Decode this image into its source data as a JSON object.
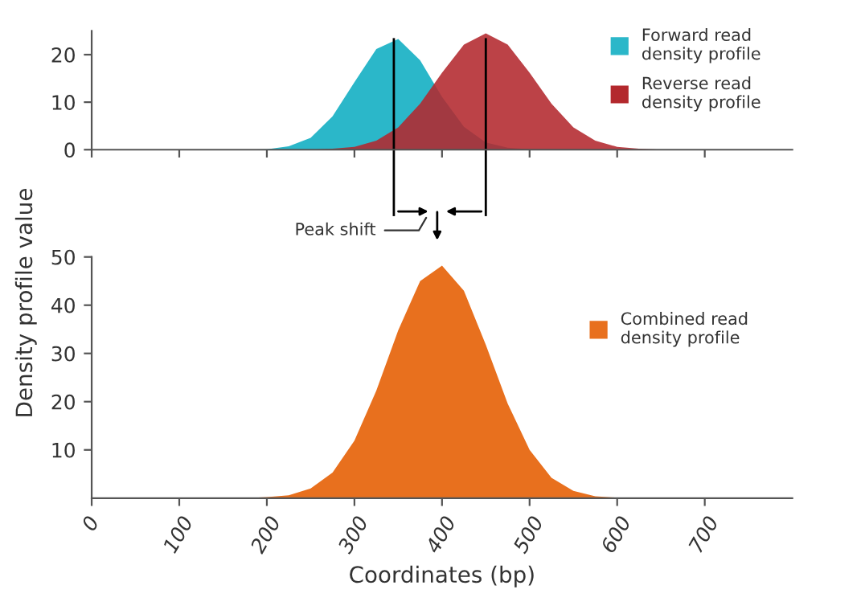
{
  "chart_data": [
    {
      "type": "area",
      "ylabel": "Density profile value",
      "x": [
        100,
        125,
        150,
        175,
        200,
        225,
        250,
        275,
        300,
        325,
        350,
        375,
        400,
        425,
        450,
        475,
        500,
        525,
        550,
        575,
        600,
        625,
        650,
        675,
        700,
        725,
        750
      ],
      "series": [
        {
          "name": "Forward read density profile",
          "color": "#2bb7c9",
          "values": [
            0,
            0,
            0,
            0,
            0.1,
            0.7,
            2.5,
            7.0,
            14.2,
            21.2,
            23.3,
            18.8,
            11.1,
            4.8,
            1.5,
            0.4,
            0.1,
            0,
            0,
            0,
            0,
            0,
            0,
            0,
            0,
            0,
            0
          ]
        },
        {
          "name": "Reverse read density profile",
          "color": "#b3282d",
          "values": [
            0,
            0,
            0,
            0,
            0,
            0,
            0,
            0.2,
            0.6,
            1.9,
            4.7,
            9.7,
            16.2,
            22.1,
            24.5,
            22.1,
            16.2,
            9.7,
            4.7,
            1.9,
            0.6,
            0.2,
            0,
            0,
            0,
            0,
            0
          ]
        }
      ],
      "xlim": [
        0,
        800
      ],
      "xticks": [
        0,
        100,
        200,
        300,
        400,
        500,
        600,
        700
      ],
      "ylim": [
        0,
        25
      ],
      "yticks": [
        0,
        10,
        20
      ],
      "tick_labels": "y",
      "legend": "top right",
      "grid": false,
      "ref_lines": [
        {
          "axis": "x",
          "value": 345,
          "color": "#000000"
        },
        {
          "axis": "x",
          "value": 450,
          "color": "#000000"
        }
      ],
      "annotations": [
        "Peak shift"
      ]
    },
    {
      "type": "area",
      "xlabel": "Coordinates (bp)",
      "x": [
        100,
        125,
        150,
        175,
        200,
        225,
        250,
        275,
        300,
        325,
        350,
        375,
        400,
        425,
        450,
        475,
        500,
        525,
        550,
        575,
        600,
        625,
        650,
        675,
        700,
        725,
        750
      ],
      "series": [
        {
          "name": "Combined read density profile",
          "color": "#e8701e",
          "values": [
            0,
            0,
            0,
            0,
            0.2,
            0.6,
            2.0,
            5.3,
            11.9,
            22.3,
            34.8,
            45.0,
            48.2,
            43.0,
            31.8,
            19.6,
            10.0,
            4.2,
            1.5,
            0.4,
            0.1,
            0,
            0,
            0,
            0,
            0,
            0
          ]
        }
      ],
      "xlim": [
        0,
        800
      ],
      "xticks": [
        0,
        100,
        200,
        300,
        400,
        500,
        600,
        700
      ],
      "ylim": [
        0,
        50
      ],
      "yticks": [
        10,
        20,
        30,
        40,
        50
      ],
      "legend": "right",
      "grid": false
    }
  ]
}
